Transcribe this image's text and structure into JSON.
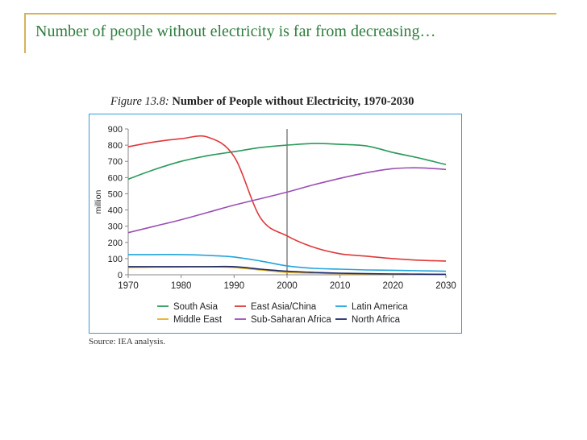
{
  "slide": {
    "title": "Number of people without electricity is far from decreasing…"
  },
  "figure": {
    "number": "Figure 13.8:",
    "title": "Number of People without Electricity, 1970-2030",
    "source": "Source: IEA analysis."
  },
  "chart_data": {
    "type": "line",
    "title": "Number of People without Electricity, 1970-2030",
    "xlabel": "",
    "ylabel": "million",
    "xlim": [
      1970,
      2030
    ],
    "ylim": [
      0,
      900
    ],
    "x_ticks": [
      1970,
      1980,
      1990,
      2000,
      2010,
      2020,
      2030
    ],
    "y_ticks": [
      0,
      100,
      200,
      300,
      400,
      500,
      600,
      700,
      800,
      900
    ],
    "vertical_marker_x": 2000,
    "x": [
      1970,
      1975,
      1980,
      1985,
      1990,
      1995,
      2000,
      2005,
      2010,
      2015,
      2020,
      2025,
      2030
    ],
    "series": [
      {
        "name": "South Asia",
        "color": "#2a9a5a",
        "values": [
          590,
          650,
          700,
          735,
          760,
          785,
          800,
          810,
          805,
          795,
          755,
          720,
          680
        ]
      },
      {
        "name": "East Asia/China",
        "color": "#e0383b",
        "values": [
          790,
          820,
          840,
          850,
          730,
          350,
          240,
          170,
          130,
          115,
          100,
          90,
          85
        ]
      },
      {
        "name": "Latin America",
        "color": "#22a4dc",
        "values": [
          125,
          125,
          125,
          120,
          110,
          85,
          55,
          40,
          35,
          30,
          28,
          25,
          22
        ]
      },
      {
        "name": "Middle East",
        "color": "#e5b020",
        "values": [
          45,
          47,
          48,
          50,
          45,
          30,
          15,
          10,
          7,
          5,
          4,
          3,
          3
        ]
      },
      {
        "name": "Sub-Saharan Africa",
        "color": "#9b4fb5",
        "values": [
          260,
          300,
          340,
          385,
          430,
          470,
          510,
          555,
          595,
          630,
          655,
          660,
          650
        ]
      },
      {
        "name": "North Africa",
        "color": "#1c2a6b",
        "values": [
          50,
          50,
          50,
          50,
          50,
          35,
          22,
          15,
          10,
          7,
          5,
          4,
          3
        ]
      }
    ],
    "legend": "bottom"
  }
}
